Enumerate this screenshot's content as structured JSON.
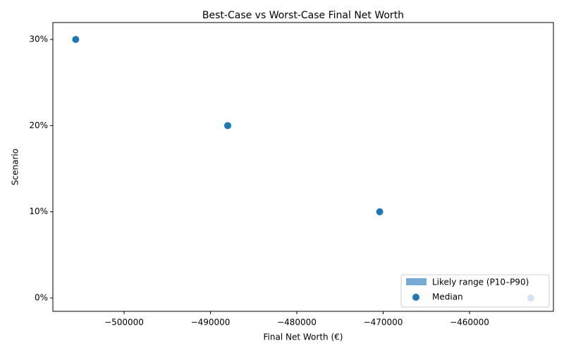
{
  "chart_data": {
    "type": "scatter",
    "title": "Best-Case vs Worst-Case Final Net Worth",
    "x_label": "Final Net Worth (€)",
    "y_label": "Scenario",
    "range_legend": {
      "name": "Likely range (P10–P90)",
      "color": "#77aad4"
    },
    "series": [
      {
        "name": "Median",
        "color": "#1f77b4",
        "x": [
          -452900,
          -470400,
          -488000,
          -505600
        ],
        "values": [
          0,
          10,
          20,
          30
        ]
      }
    ],
    "xlim": [
      -508245,
      -450286
    ],
    "ylim": [
      -1.55,
      31.96
    ],
    "xticks": [
      {
        "value": -500000,
        "label": "−500000"
      },
      {
        "value": -490000,
        "label": "−490000"
      },
      {
        "value": -480000,
        "label": "−480000"
      },
      {
        "value": -470000,
        "label": "−470000"
      },
      {
        "value": -460000,
        "label": "−460000"
      }
    ],
    "yticks": [
      {
        "value": 0,
        "label": "0%"
      },
      {
        "value": 10,
        "label": "10%"
      },
      {
        "value": 20,
        "label": "20%"
      },
      {
        "value": 30,
        "label": "30%"
      }
    ],
    "legend": "lower right"
  }
}
